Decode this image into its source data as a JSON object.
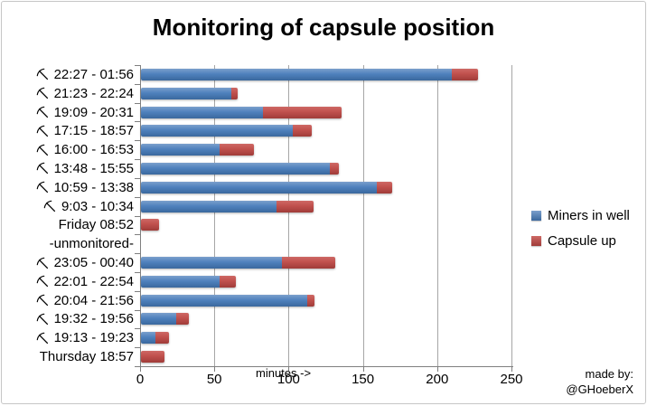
{
  "chart_data": {
    "type": "bar",
    "orientation": "horizontal",
    "stacked": true,
    "title": "Monitoring of capsule position",
    "xlabel": "minutes ->",
    "xlim": [
      0,
      250
    ],
    "x_ticks": [
      0,
      50,
      100,
      150,
      200,
      250
    ],
    "grid": true,
    "grid_color": "#A6A6A6",
    "axis_color": "#7F7F7F",
    "legend_position": "right",
    "categories": [
      {
        "label": "22:27 - 01:56",
        "pickaxe": true
      },
      {
        "label": "21:23 - 22:24",
        "pickaxe": true
      },
      {
        "label": "19:09 - 20:31",
        "pickaxe": true
      },
      {
        "label": "17:15 - 18:57",
        "pickaxe": true
      },
      {
        "label": "16:00 - 16:53",
        "pickaxe": true
      },
      {
        "label": "13:48 - 15:55",
        "pickaxe": true
      },
      {
        "label": "10:59 - 13:38",
        "pickaxe": true
      },
      {
        "label": "9:03 - 10:34",
        "pickaxe": true
      },
      {
        "label": "Friday 08:52",
        "pickaxe": false
      },
      {
        "label": "-unmonitored-",
        "pickaxe": false
      },
      {
        "label": "23:05 - 00:40",
        "pickaxe": true
      },
      {
        "label": "22:01 - 22:54",
        "pickaxe": true
      },
      {
        "label": "20:04 - 21:56",
        "pickaxe": true
      },
      {
        "label": "19:32 - 19:56",
        "pickaxe": true
      },
      {
        "label": "19:13 - 19:23",
        "pickaxe": true
      },
      {
        "label": "Thursday 18:57",
        "pickaxe": false
      }
    ],
    "series": [
      {
        "name": "Miners in well",
        "color": "#4F81BD",
        "values": [
          209,
          61,
          82,
          102,
          53,
          127,
          159,
          91,
          0,
          0,
          95,
          53,
          112,
          24,
          10,
          0
        ]
      },
      {
        "name": "Capsule up",
        "color": "#C0504D",
        "values": [
          18,
          4,
          53,
          13,
          23,
          6,
          10,
          25,
          12,
          0,
          36,
          11,
          5,
          8,
          9,
          16
        ]
      }
    ]
  },
  "credit": {
    "line1": "made by:",
    "line2": "@GHoeberX"
  }
}
